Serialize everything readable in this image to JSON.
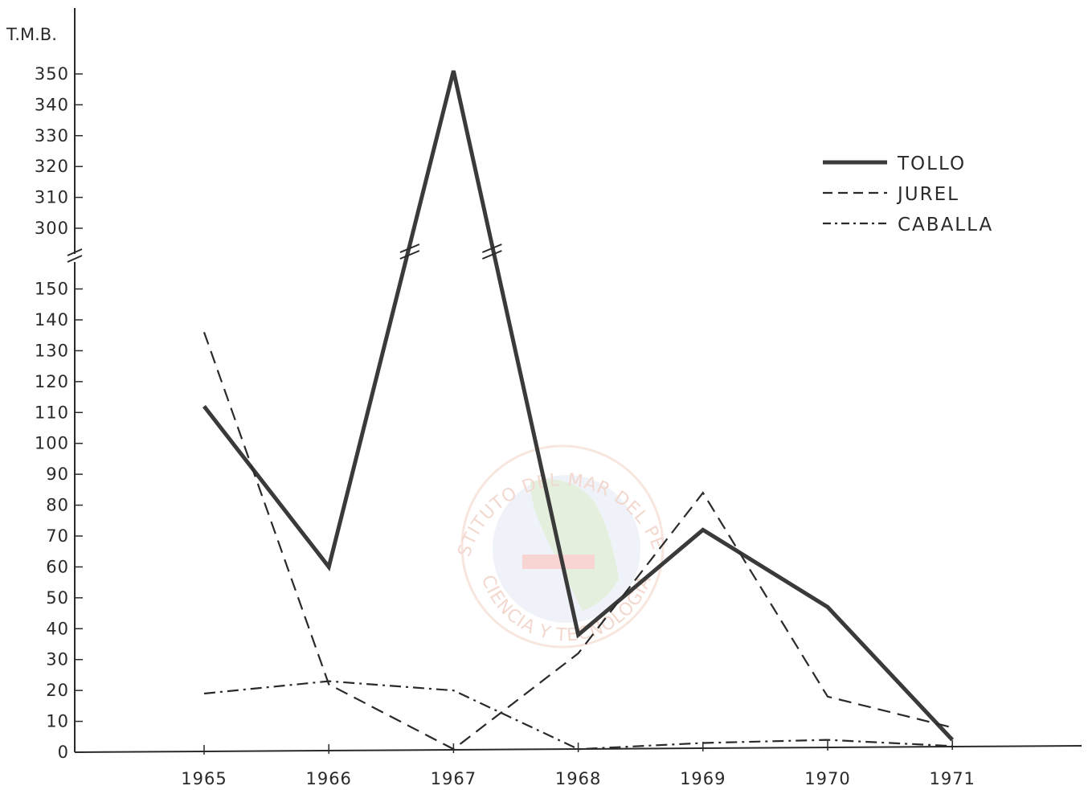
{
  "chart_data": {
    "type": "line",
    "ylabel": "T.M.B.",
    "x": [
      "1965",
      "1966",
      "1967",
      "1968",
      "1969",
      "1970",
      "1971"
    ],
    "y_ticks_lower": [
      "0",
      "10",
      "20",
      "30",
      "40",
      "50",
      "60",
      "70",
      "80",
      "90",
      "100",
      "110",
      "120",
      "130",
      "140",
      "150"
    ],
    "y_ticks_upper": [
      "300",
      "310",
      "320",
      "330",
      "340",
      "350"
    ],
    "axis_break": {
      "from": 150,
      "to": 300
    },
    "ylim": [
      0,
      350
    ],
    "series": [
      {
        "name": "TOLLO",
        "style": "solid",
        "color": "#3a3a3a",
        "values": [
          112,
          60,
          351,
          38,
          72,
          47,
          4
        ]
      },
      {
        "name": "JUREL",
        "style": "dashed",
        "color": "#2a2a2a",
        "values": [
          136,
          22,
          1,
          32,
          84,
          18,
          8
        ]
      },
      {
        "name": "CABALLA",
        "style": "dash-dot",
        "color": "#2a2a2a",
        "values": [
          19,
          23,
          20,
          1,
          3,
          4,
          2
        ]
      }
    ],
    "legend": {
      "position": "top-right"
    },
    "grid": false
  },
  "watermark": {
    "top_text": "INSTITUTO DEL MAR DEL PERU",
    "bottom_text": "CIENCIA Y TECNOLOGIA"
  }
}
